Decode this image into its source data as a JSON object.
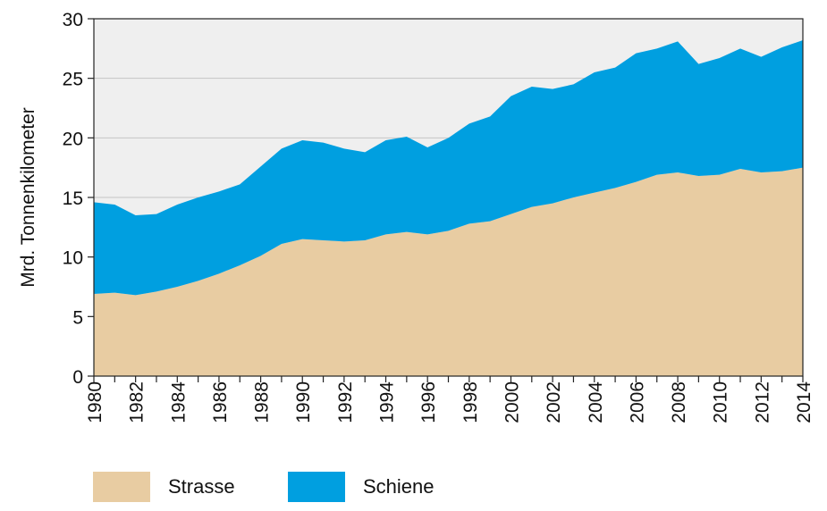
{
  "chart_data": {
    "type": "area",
    "stacked": true,
    "ylabel": "Mrd. Tonnenkilometer",
    "xlabel": "",
    "ylim": [
      0,
      30
    ],
    "yticks": [
      0,
      5,
      10,
      15,
      20,
      25,
      30
    ],
    "xticks": [
      1980,
      1982,
      1984,
      1986,
      1988,
      1990,
      1992,
      1994,
      1996,
      1998,
      2000,
      2002,
      2004,
      2006,
      2008,
      2010,
      2012,
      2014
    ],
    "x": [
      1980,
      1981,
      1982,
      1983,
      1984,
      1985,
      1986,
      1987,
      1988,
      1989,
      1990,
      1991,
      1992,
      1993,
      1994,
      1995,
      1996,
      1997,
      1998,
      1999,
      2000,
      2001,
      2002,
      2003,
      2004,
      2005,
      2006,
      2007,
      2008,
      2009,
      2010,
      2011,
      2012,
      2013,
      2014
    ],
    "series": [
      {
        "name": "Strasse",
        "color": "#e8cca2",
        "values": [
          6.9,
          7.0,
          6.8,
          7.1,
          7.5,
          8.0,
          8.6,
          9.3,
          10.1,
          11.1,
          11.5,
          11.4,
          11.3,
          11.4,
          11.9,
          12.1,
          11.9,
          12.2,
          12.8,
          13.0,
          13.6,
          14.2,
          14.5,
          15.0,
          15.4,
          15.8,
          16.3,
          16.9,
          17.1,
          16.8,
          16.9,
          17.4,
          17.1,
          17.2,
          17.5
        ]
      },
      {
        "name": "Schiene",
        "color": "#009fe0",
        "values": [
          7.7,
          7.4,
          6.7,
          6.5,
          6.9,
          7.0,
          6.9,
          6.8,
          7.5,
          8.0,
          8.3,
          8.2,
          7.8,
          7.4,
          7.9,
          8.0,
          7.3,
          7.8,
          8.4,
          8.8,
          9.9,
          10.1,
          9.6,
          9.5,
          10.1,
          10.1,
          10.8,
          10.6,
          11.0,
          9.4,
          9.8,
          10.1,
          9.7,
          10.4,
          10.7
        ]
      }
    ],
    "plot_background": "#efefef",
    "grid": "horizontal",
    "legend_position": "bottom"
  },
  "legend": {
    "items": [
      {
        "label": "Strasse",
        "color": "#e8cca2"
      },
      {
        "label": "Schiene",
        "color": "#009fe0"
      }
    ]
  }
}
